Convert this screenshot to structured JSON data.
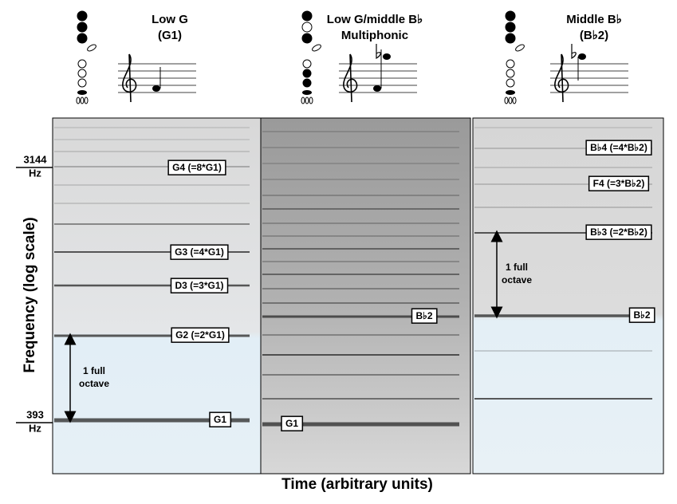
{
  "y_axis": {
    "title": "Frequency (log scale)",
    "ticks": [
      [
        "3144",
        "Hz"
      ],
      [
        "393",
        "Hz"
      ]
    ]
  },
  "x_axis": {
    "title": "Time (arbitrary units)"
  },
  "panels": [
    {
      "title": [
        "Low G",
        "(G1)"
      ],
      "labels": [
        "G4 (=8*G1)",
        "G3 (=4*G1)",
        "D3 (=3*G1)",
        "G2 (=2*G1)",
        "G1"
      ],
      "annotation": [
        "1 full",
        "octave"
      ]
    },
    {
      "title": [
        "Low G/middle B♭",
        "Multiphonic"
      ],
      "labels": [
        "B♭2",
        "G1"
      ]
    },
    {
      "title": [
        "Middle B♭",
        "(B♭2)"
      ],
      "labels": [
        "B♭4 (=4*B♭2)",
        "F4 (=3*B♭2)",
        "B♭3 (=2*B♭2)",
        "B♭2"
      ],
      "annotation": [
        "1 full",
        "octave"
      ]
    }
  ]
}
